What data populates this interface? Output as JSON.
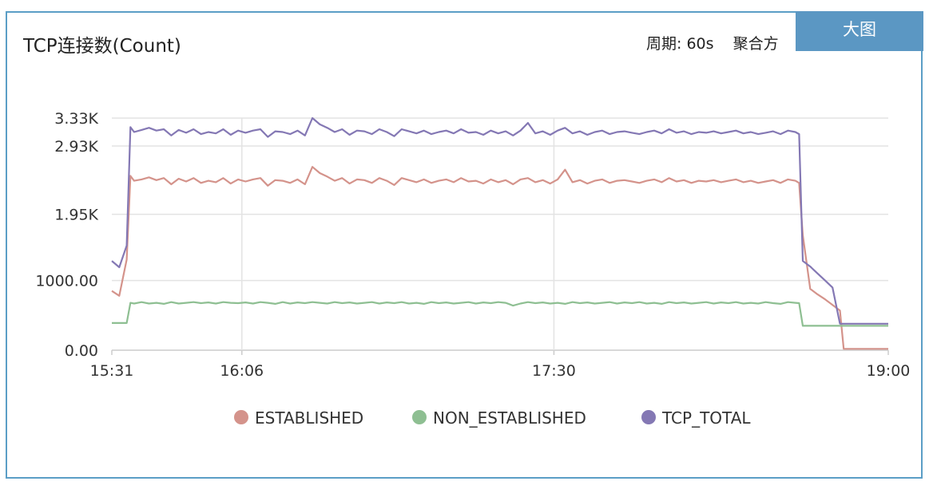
{
  "header": {
    "title": "TCP连接数(Count)",
    "period_label": "周期: 60s",
    "aggregation_label": "聚合方",
    "big_button_label": "大图"
  },
  "chart_data": {
    "type": "line",
    "title": "TCP连接数(Count)",
    "xlabel": "",
    "ylabel": "",
    "x_range_minutes": [
      0,
      209
    ],
    "ylim": [
      0,
      3330
    ],
    "y_ticks": [
      {
        "value": 0,
        "label": "0.00"
      },
      {
        "value": 1000,
        "label": "1000.00"
      },
      {
        "value": 1950,
        "label": "1.95K"
      },
      {
        "value": 2930,
        "label": "2.93K"
      },
      {
        "value": 3330,
        "label": "3.33K"
      }
    ],
    "x_ticks": [
      {
        "value": 0,
        "label": "15:31"
      },
      {
        "value": 35,
        "label": "16:06"
      },
      {
        "value": 119,
        "label": "17:30"
      },
      {
        "value": 209,
        "label": "19:00"
      }
    ],
    "grid": true,
    "legend_position": "bottom",
    "series": [
      {
        "name": "ESTABLISHED",
        "color": "#d4938b",
        "x": [
          0,
          2,
          4,
          5,
          6,
          8,
          10,
          12,
          14,
          16,
          18,
          20,
          22,
          24,
          26,
          28,
          30,
          32,
          34,
          36,
          38,
          40,
          42,
          44,
          46,
          48,
          50,
          52,
          54,
          56,
          58,
          60,
          62,
          64,
          66,
          68,
          70,
          72,
          74,
          76,
          78,
          80,
          82,
          84,
          86,
          88,
          90,
          92,
          94,
          96,
          98,
          100,
          102,
          104,
          106,
          108,
          110,
          112,
          114,
          116,
          118,
          120,
          122,
          124,
          126,
          128,
          130,
          132,
          134,
          136,
          138,
          140,
          142,
          144,
          146,
          148,
          150,
          152,
          154,
          156,
          158,
          160,
          162,
          164,
          166,
          168,
          170,
          172,
          174,
          176,
          178,
          180,
          182,
          184,
          185,
          186,
          188,
          190,
          192,
          194,
          196,
          197,
          199,
          201,
          203,
          205,
          207,
          209
        ],
        "y": [
          850,
          780,
          1300,
          2500,
          2430,
          2450,
          2480,
          2440,
          2470,
          2380,
          2460,
          2420,
          2470,
          2400,
          2430,
          2410,
          2470,
          2390,
          2450,
          2420,
          2450,
          2470,
          2360,
          2440,
          2430,
          2400,
          2450,
          2380,
          2630,
          2540,
          2490,
          2430,
          2470,
          2390,
          2450,
          2440,
          2400,
          2470,
          2430,
          2370,
          2470,
          2440,
          2410,
          2450,
          2400,
          2430,
          2450,
          2410,
          2470,
          2420,
          2430,
          2390,
          2450,
          2410,
          2440,
          2380,
          2450,
          2470,
          2410,
          2440,
          2390,
          2450,
          2590,
          2410,
          2440,
          2390,
          2430,
          2450,
          2400,
          2430,
          2440,
          2420,
          2400,
          2430,
          2450,
          2410,
          2470,
          2420,
          2440,
          2400,
          2430,
          2420,
          2440,
          2410,
          2430,
          2450,
          2410,
          2430,
          2400,
          2420,
          2440,
          2400,
          2450,
          2430,
          2400,
          1650,
          880,
          800,
          730,
          650,
          570,
          20,
          20,
          20,
          20,
          20,
          20,
          20
        ]
      },
      {
        "name": "NON_ESTABLISHED",
        "color": "#8ebf92",
        "x": [
          0,
          2,
          4,
          5,
          6,
          8,
          10,
          12,
          14,
          16,
          18,
          20,
          22,
          24,
          26,
          28,
          30,
          32,
          34,
          36,
          38,
          40,
          42,
          44,
          46,
          48,
          50,
          52,
          54,
          56,
          58,
          60,
          62,
          64,
          66,
          68,
          70,
          72,
          74,
          76,
          78,
          80,
          82,
          84,
          86,
          88,
          90,
          92,
          94,
          96,
          98,
          100,
          102,
          104,
          106,
          108,
          110,
          112,
          114,
          116,
          118,
          120,
          122,
          124,
          126,
          128,
          130,
          132,
          134,
          136,
          138,
          140,
          142,
          144,
          146,
          148,
          150,
          152,
          154,
          156,
          158,
          160,
          162,
          164,
          166,
          168,
          170,
          172,
          174,
          176,
          178,
          180,
          182,
          184,
          185,
          186,
          188,
          190,
          192,
          194,
          196,
          197,
          199,
          201,
          203,
          205,
          207,
          209
        ],
        "y": [
          390,
          390,
          390,
          680,
          670,
          690,
          670,
          680,
          665,
          690,
          670,
          680,
          690,
          675,
          685,
          670,
          690,
          680,
          675,
          685,
          670,
          690,
          680,
          665,
          690,
          670,
          685,
          675,
          690,
          680,
          670,
          690,
          675,
          685,
          670,
          680,
          690,
          670,
          685,
          675,
          690,
          670,
          680,
          665,
          690,
          675,
          685,
          670,
          680,
          690,
          670,
          685,
          675,
          690,
          680,
          640,
          670,
          690,
          675,
          685,
          670,
          680,
          665,
          690,
          675,
          685,
          670,
          680,
          690,
          670,
          685,
          675,
          690,
          670,
          680,
          665,
          690,
          675,
          685,
          670,
          680,
          690,
          670,
          685,
          675,
          690,
          670,
          680,
          670,
          690,
          675,
          665,
          690,
          680,
          675,
          350,
          350,
          350,
          350,
          350,
          350,
          350,
          350,
          350,
          350,
          350,
          350,
          350
        ]
      },
      {
        "name": "TCP_TOTAL",
        "color": "#8478b4",
        "x": [
          0,
          2,
          4,
          5,
          6,
          8,
          10,
          12,
          14,
          16,
          18,
          20,
          22,
          24,
          26,
          28,
          30,
          32,
          34,
          36,
          38,
          40,
          42,
          44,
          46,
          48,
          50,
          52,
          54,
          56,
          58,
          60,
          62,
          64,
          66,
          68,
          70,
          72,
          74,
          76,
          78,
          80,
          82,
          84,
          86,
          88,
          90,
          92,
          94,
          96,
          98,
          100,
          102,
          104,
          106,
          108,
          110,
          112,
          114,
          116,
          118,
          120,
          122,
          124,
          126,
          128,
          130,
          132,
          134,
          136,
          138,
          140,
          142,
          144,
          146,
          148,
          150,
          152,
          154,
          156,
          158,
          160,
          162,
          164,
          166,
          168,
          170,
          172,
          174,
          176,
          178,
          180,
          182,
          184,
          185,
          186,
          188,
          190,
          192,
          194,
          196,
          197,
          199,
          201,
          203,
          205,
          207,
          209
        ],
        "y": [
          1280,
          1190,
          1500,
          3200,
          3130,
          3160,
          3190,
          3150,
          3170,
          3080,
          3160,
          3120,
          3170,
          3100,
          3130,
          3110,
          3170,
          3090,
          3150,
          3120,
          3150,
          3170,
          3060,
          3140,
          3130,
          3100,
          3150,
          3080,
          3330,
          3240,
          3190,
          3130,
          3170,
          3090,
          3150,
          3140,
          3100,
          3170,
          3130,
          3070,
          3170,
          3140,
          3110,
          3150,
          3100,
          3130,
          3150,
          3110,
          3170,
          3120,
          3130,
          3090,
          3150,
          3110,
          3140,
          3080,
          3150,
          3260,
          3110,
          3140,
          3090,
          3150,
          3190,
          3110,
          3140,
          3090,
          3130,
          3150,
          3100,
          3130,
          3140,
          3120,
          3100,
          3130,
          3150,
          3110,
          3170,
          3120,
          3140,
          3100,
          3130,
          3120,
          3140,
          3110,
          3130,
          3150,
          3110,
          3130,
          3100,
          3120,
          3140,
          3100,
          3150,
          3130,
          3100,
          1280,
          1200,
          1100,
          1000,
          900,
          380,
          380,
          380,
          380,
          380,
          380,
          380,
          380
        ]
      }
    ]
  }
}
